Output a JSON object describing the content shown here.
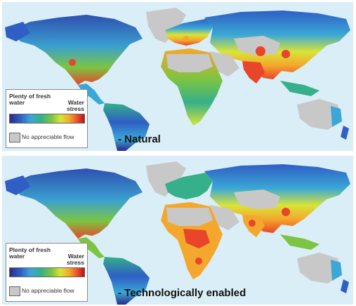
{
  "panels": [
    {
      "caption": "- Natural",
      "legend": {
        "left_label": "Plenty of fresh water",
        "right_label": "Water stress",
        "na_label": "No appreciable flow"
      }
    },
    {
      "caption": "- Technologically enabled",
      "legend": {
        "left_label": "Plenty of fresh water",
        "right_label": "Water stress",
        "na_label": "No appreciable flow"
      }
    }
  ],
  "colors": {
    "ocean": "#d9eef6",
    "no_flow": "#c8c8c8",
    "scale": [
      "#2a2a8c",
      "#2f5ec4",
      "#3aa7d6",
      "#35b08a",
      "#7cc442",
      "#d9e437",
      "#f4a72d",
      "#e8452a",
      "#b31515"
    ]
  }
}
